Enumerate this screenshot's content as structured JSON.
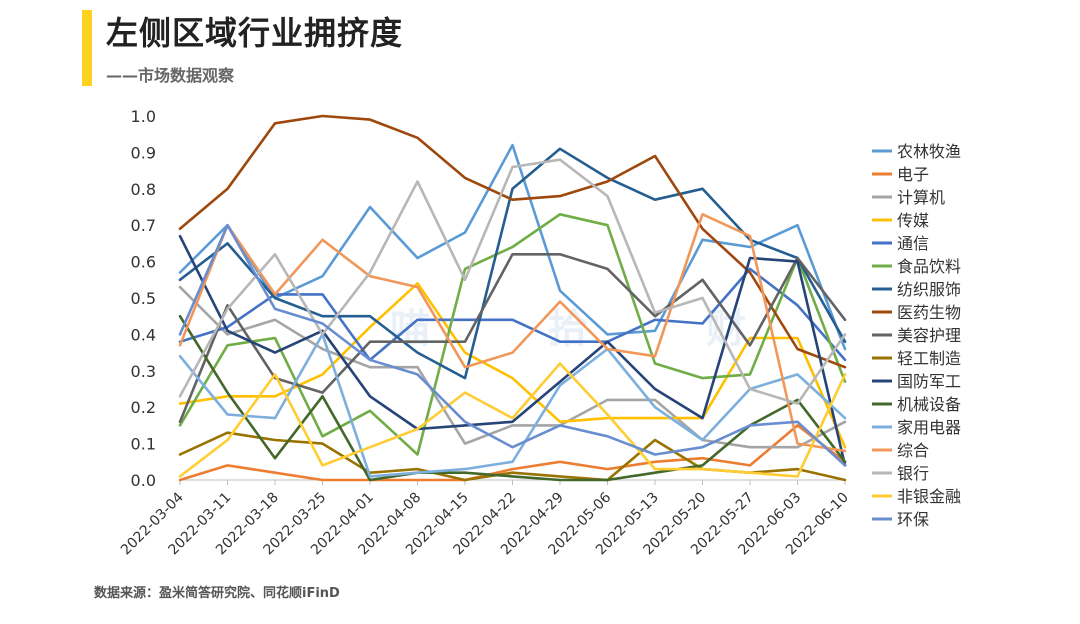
{
  "header": {
    "title": "左侧区域行业拥挤度",
    "subtitle": "——市场数据观察",
    "accent_color": "#ffd21f"
  },
  "footer": {
    "source": "数据来源：盈米简答研究院、同花顺iFinD"
  },
  "watermark": "喵 拾 财",
  "chart_data": {
    "type": "line",
    "title": "",
    "xlabel": "",
    "ylabel": "",
    "ylim": [
      0,
      1.0
    ],
    "y_ticks": [
      "0.0",
      "0.1",
      "0.2",
      "0.3",
      "0.4",
      "0.5",
      "0.6",
      "0.7",
      "0.8",
      "0.9",
      "1.0"
    ],
    "grid": false,
    "legend_position": "right",
    "x": [
      "2022-03-04",
      "2022-03-11",
      "2022-03-18",
      "2022-03-25",
      "2022-04-01",
      "2022-04-08",
      "2022-04-15",
      "2022-04-22",
      "2022-04-29",
      "2022-05-06",
      "2022-05-13",
      "2022-05-20",
      "2022-05-27",
      "2022-06-03",
      "2022-06-10"
    ],
    "series": [
      {
        "name": "农林牧渔",
        "color": "#5b9bd5",
        "values": [
          0.57,
          0.7,
          0.5,
          0.56,
          0.75,
          0.61,
          0.68,
          0.92,
          0.52,
          0.4,
          0.41,
          0.66,
          0.64,
          0.7,
          0.36
        ]
      },
      {
        "name": "电子",
        "color": "#ed7d31",
        "values": [
          0.0,
          0.04,
          0.02,
          0.0,
          0.0,
          0.0,
          0.0,
          0.03,
          0.05,
          0.03,
          0.05,
          0.06,
          0.04,
          0.15,
          0.05
        ]
      },
      {
        "name": "计算机",
        "color": "#a5a5a5",
        "values": [
          0.53,
          0.4,
          0.44,
          0.36,
          0.31,
          0.31,
          0.1,
          0.15,
          0.15,
          0.22,
          0.22,
          0.11,
          0.09,
          0.09,
          0.16
        ]
      },
      {
        "name": "传媒",
        "color": "#ffc000",
        "values": [
          0.21,
          0.23,
          0.23,
          0.29,
          0.42,
          0.54,
          0.35,
          0.28,
          0.16,
          0.17,
          0.17,
          0.17,
          0.39,
          0.39,
          0.09
        ]
      },
      {
        "name": "通信",
        "color": "#4472c4",
        "values": [
          0.38,
          0.42,
          0.51,
          0.51,
          0.33,
          0.44,
          0.44,
          0.44,
          0.38,
          0.38,
          0.44,
          0.43,
          0.58,
          0.48,
          0.33
        ]
      },
      {
        "name": "食品饮料",
        "color": "#70ad47",
        "values": [
          0.15,
          0.37,
          0.39,
          0.12,
          0.19,
          0.07,
          0.58,
          0.64,
          0.73,
          0.7,
          0.32,
          0.28,
          0.29,
          0.61,
          0.27
        ]
      },
      {
        "name": "纺织服饰",
        "color": "#255e91",
        "values": [
          0.55,
          0.65,
          0.5,
          0.45,
          0.45,
          0.35,
          0.28,
          0.8,
          0.91,
          0.83,
          0.77,
          0.8,
          0.66,
          0.61,
          0.38
        ]
      },
      {
        "name": "医药生物",
        "color": "#9e480e",
        "values": [
          0.69,
          0.8,
          0.98,
          1.0,
          0.99,
          0.94,
          0.83,
          0.77,
          0.78,
          0.82,
          0.89,
          0.69,
          0.57,
          0.36,
          0.31
        ]
      },
      {
        "name": "美容护理",
        "color": "#636363",
        "values": [
          0.16,
          0.48,
          0.28,
          0.24,
          0.38,
          0.38,
          0.38,
          0.62,
          0.62,
          0.58,
          0.45,
          0.55,
          0.37,
          0.61,
          0.44
        ]
      },
      {
        "name": "轻工制造",
        "color": "#997300",
        "values": [
          0.07,
          0.13,
          0.11,
          0.1,
          0.02,
          0.03,
          0.0,
          0.02,
          0.01,
          0.0,
          0.11,
          0.03,
          0.02,
          0.03,
          0.0
        ]
      },
      {
        "name": "国防军工",
        "color": "#264478",
        "values": [
          0.67,
          0.41,
          0.35,
          0.41,
          0.23,
          0.14,
          0.15,
          0.16,
          0.27,
          0.38,
          0.25,
          0.17,
          0.61,
          0.6,
          0.04
        ]
      },
      {
        "name": "机械设备",
        "color": "#43682b",
        "values": [
          0.45,
          0.24,
          0.06,
          0.23,
          0.0,
          0.02,
          0.02,
          0.01,
          0.0,
          0.0,
          0.02,
          0.04,
          0.15,
          0.22,
          0.05
        ]
      },
      {
        "name": "家用电器",
        "color": "#7cafdd",
        "values": [
          0.34,
          0.18,
          0.17,
          0.4,
          0.01,
          0.02,
          0.03,
          0.05,
          0.26,
          0.36,
          0.2,
          0.11,
          0.25,
          0.29,
          0.17
        ]
      },
      {
        "name": "综合",
        "color": "#f1975a",
        "values": [
          0.37,
          0.7,
          0.51,
          0.66,
          0.56,
          0.53,
          0.31,
          0.35,
          0.49,
          0.36,
          0.34,
          0.73,
          0.67,
          0.1,
          0.08
        ]
      },
      {
        "name": "银行",
        "color": "#b7b7b7",
        "values": [
          0.23,
          0.47,
          0.62,
          0.4,
          0.57,
          0.82,
          0.55,
          0.86,
          0.88,
          0.78,
          0.46,
          0.5,
          0.25,
          0.21,
          0.4
        ]
      },
      {
        "name": "非银金融",
        "color": "#ffcd33",
        "values": [
          0.01,
          0.11,
          0.29,
          0.04,
          0.09,
          0.14,
          0.24,
          0.17,
          0.32,
          0.18,
          0.03,
          0.03,
          0.02,
          0.01,
          0.29
        ]
      },
      {
        "name": "环保",
        "color": "#698ed0",
        "values": [
          0.4,
          0.7,
          0.47,
          0.43,
          0.33,
          0.29,
          0.16,
          0.09,
          0.15,
          0.12,
          0.07,
          0.09,
          0.15,
          0.16,
          0.04
        ]
      }
    ]
  }
}
